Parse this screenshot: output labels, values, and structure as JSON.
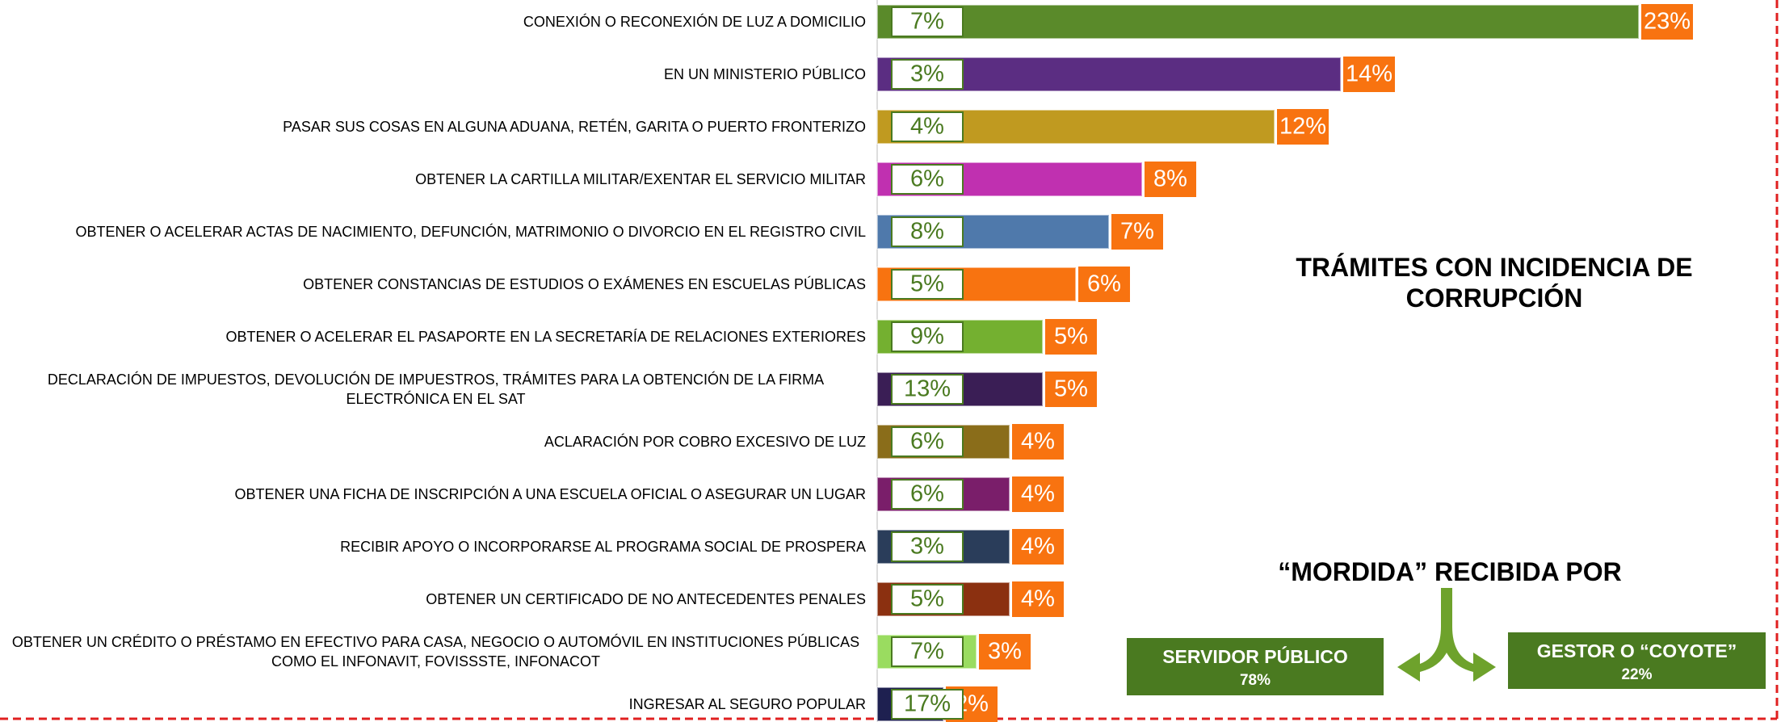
{
  "chart_data": {
    "type": "bar",
    "categories": [
      "CONEXIÓN O RECONEXIÓN DE LUZ A DOMICILIO",
      "EN UN MINISTERIO PÚBLICO",
      "PASAR SUS COSAS EN ALGUNA ADUANA, RETÉN, GARITA O PUERTO FRONTERIZO",
      "OBTENER LA CARTILLA MILITAR/EXENTAR EL SERVICIO MILITAR",
      "OBTENER O ACELERAR ACTAS DE NACIMIENTO,  DEFUNCIÓN, MATRIMONIO O DIVORCIO EN EL REGISTRO CIVIL",
      "OBTENER CONSTANCIAS DE ESTUDIOS O EXÁMENES EN ESCUELAS PÚBLICAS",
      "OBTENER O ACELERAR EL PASAPORTE EN LA SECRETARÍA DE RELACIONES EXTERIORES",
      "DECLARACIÓN DE IMPUESTOS, DEVOLUCIÓN DE IMPUESTROS, TRÁMITES PARA LA OBTENCIÓN DE LA FIRMA ELECTRÓNICA EN EL SAT",
      "ACLARACIÓN POR COBRO EXCESIVO DE LUZ",
      "OBTENER UNA FICHA DE INSCRIPCIÓN A UNA ESCUELA OFICIAL O ASEGURAR UN LUGAR",
      "RECIBIR APOYO O INCORPORARSE AL PROGRAMA SOCIAL DE PROSPERA",
      "OBTENER UN CERTIFICADO DE NO ANTECEDENTES PENALES",
      "OBTENER UN CRÉDITO O PRÉSTAMO EN EFECTIVO PARA CASA, NEGOCIO O AUTOMÓVIL EN INSTITUCIONES PÚBLICAS COMO EL INFONAVIT, FOVISSSTE, INFONACOT",
      "INGRESAR AL SEGURO POPULAR"
    ],
    "series": [
      {
        "colors": [
          "#5a8a2a",
          "#5b2d82",
          "#c09a20",
          "#c030b0",
          "#4f79ab",
          "#f87310",
          "#74b030",
          "#3a1e55",
          "#8a6d1a",
          "#7a1e6a",
          "#2a3d5a",
          "#8b3010",
          "#9adc60",
          "#1e2050"
        ],
        "label_color": "#f87310",
        "values": [
          23,
          14,
          12,
          8,
          7,
          6,
          5,
          5,
          4,
          4,
          4,
          4,
          3,
          2
        ],
        "value_labels": [
          "23%",
          "14%",
          "12%",
          "8%",
          "7%",
          "6%",
          "5%",
          "5%",
          "4%",
          "4%",
          "4%",
          "4%",
          "3%",
          "2%"
        ]
      },
      {
        "color": "#4a7a20",
        "values": [
          7,
          3,
          4,
          6,
          8,
          5,
          9,
          13,
          6,
          6,
          3,
          5,
          7,
          17
        ],
        "value_labels": [
          "7%",
          "3%",
          "4%",
          "6%",
          "8%",
          "5%",
          "9%",
          "13%",
          "6%",
          "6%",
          "3%",
          "5%",
          "7%",
          "17%"
        ]
      }
    ],
    "xlim": [
      0,
      23
    ],
    "annotations": {
      "title": "TRÁMITES CON INCIDENCIA DE CORRUPCIÓN",
      "subtitle": "“MORDIDA” RECIBIDA POR",
      "boxes": [
        {
          "label": "SERVIDOR PÚBLICO",
          "value": 78,
          "value_label": "78%",
          "color": "#4a7a20"
        },
        {
          "label": "GESTOR O “COYOTE”",
          "value": 22,
          "value_label": "22%",
          "color": "#4a7a20"
        }
      ]
    }
  }
}
